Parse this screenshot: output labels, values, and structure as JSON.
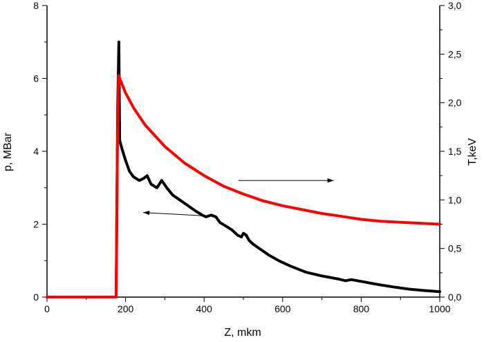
{
  "chart_data": {
    "type": "line",
    "xlabel": "Z, mkm",
    "ylabel_left": "p, MBar",
    "ylabel_right": "T,keV",
    "xlim": [
      0,
      1000
    ],
    "ylim_left": [
      0,
      8
    ],
    "ylim_right": [
      0,
      3
    ],
    "x_ticks": [
      0,
      200,
      400,
      600,
      800,
      1000
    ],
    "x_tick_labels": [
      "0",
      "200",
      "400",
      "600",
      "800",
      "1000"
    ],
    "y_left_ticks": [
      0,
      2,
      4,
      6,
      8
    ],
    "y_left_tick_labels": [
      "0",
      "2",
      "4",
      "6",
      "8"
    ],
    "y_right_ticks": [
      0,
      0.5,
      1.0,
      1.5,
      2.0,
      2.5,
      3.0
    ],
    "y_right_tick_labels": [
      "0,0",
      "0,5",
      "1,0",
      "1,5",
      "2,0",
      "2,5",
      "3,0"
    ],
    "grid": false,
    "series": [
      {
        "axis": "left",
        "color": "#000000",
        "x": [
          0,
          176,
          180,
          183,
          185,
          190,
          200,
          210,
          220,
          235,
          245,
          255,
          265,
          280,
          292,
          305,
          320,
          340,
          360,
          380,
          395,
          405,
          418,
          430,
          440,
          455,
          470,
          485,
          495,
          500,
          507,
          515,
          525,
          545,
          565,
          590,
          620,
          660,
          700,
          740,
          760,
          775,
          800,
          840,
          880,
          920,
          960,
          1000
        ],
        "y": [
          0,
          0,
          5.2,
          7.0,
          4.3,
          4.1,
          3.75,
          3.45,
          3.3,
          3.2,
          3.25,
          3.33,
          3.1,
          3.0,
          3.2,
          3.0,
          2.8,
          2.65,
          2.5,
          2.35,
          2.25,
          2.2,
          2.25,
          2.2,
          2.05,
          1.95,
          1.85,
          1.7,
          1.65,
          1.75,
          1.7,
          1.55,
          1.45,
          1.3,
          1.15,
          1.0,
          0.85,
          0.68,
          0.58,
          0.5,
          0.45,
          0.48,
          0.43,
          0.35,
          0.28,
          0.22,
          0.18,
          0.15
        ]
      },
      {
        "axis": "right",
        "color": "#ff0000",
        "x": [
          0,
          176,
          179,
          182,
          200,
          220,
          250,
          300,
          350,
          400,
          450,
          500,
          550,
          600,
          650,
          700,
          750,
          800,
          850,
          900,
          950,
          1000
        ],
        "y": [
          0,
          0,
          1.5,
          2.28,
          2.1,
          1.95,
          1.77,
          1.55,
          1.38,
          1.25,
          1.14,
          1.06,
          0.99,
          0.94,
          0.9,
          0.86,
          0.83,
          0.8,
          0.78,
          0.77,
          0.76,
          0.75
        ]
      }
    ],
    "annotations": [
      {
        "type": "arrow",
        "direction": "left",
        "points_to": "left",
        "from": {
          "x": 402,
          "y": 2.23
        },
        "to": {
          "x": 245,
          "y": 2.32
        }
      },
      {
        "type": "arrow",
        "direction": "right",
        "points_to": "right",
        "from": {
          "x": 488,
          "y": 1.2
        },
        "to": {
          "x": 730,
          "y": 1.2
        }
      }
    ]
  }
}
